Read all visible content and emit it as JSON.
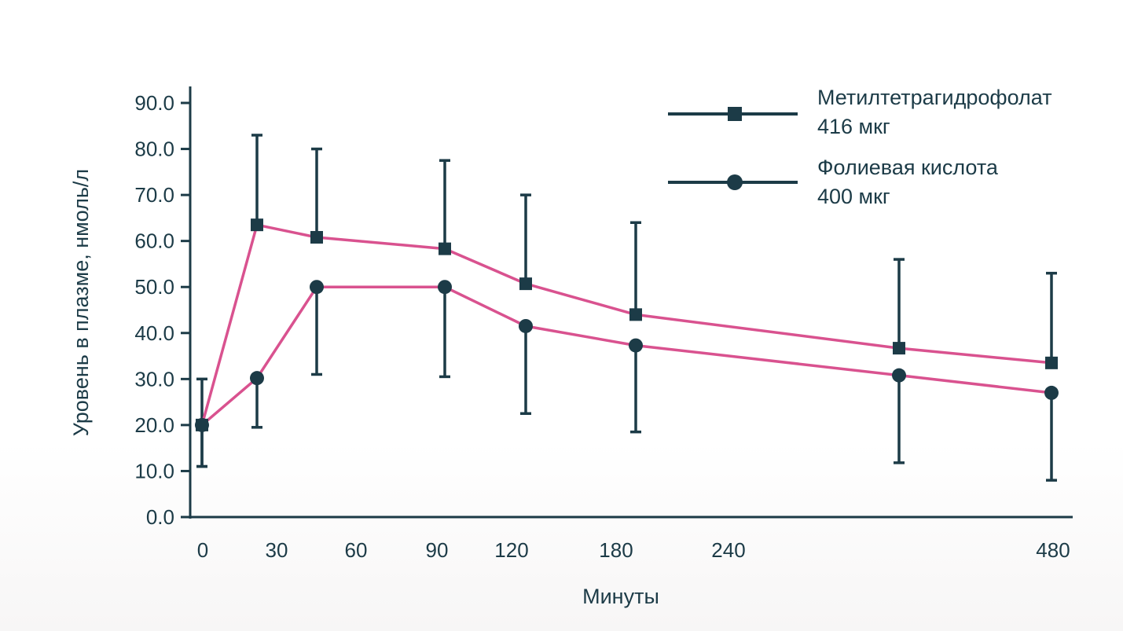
{
  "chart_data": {
    "type": "line",
    "title": "",
    "xlabel": "Минуты",
    "ylabel": "Уровень в плазме, нмоль/л",
    "ylim": [
      0,
      90
    ],
    "grid": false,
    "legend_position": "top-right",
    "colors": {
      "line": "#d9528f",
      "marker": "#1c3b47",
      "axis": "#1c3b47"
    },
    "y_ticks": [
      "0.0",
      "10.0",
      "20.0",
      "30.0",
      "40.0",
      "50.0",
      "60.0",
      "70.0",
      "80.0",
      "90.0"
    ],
    "x_tick_labels": [
      "0",
      "30",
      "60",
      "90",
      "120",
      "180",
      "240",
      "480"
    ],
    "series": [
      {
        "name": "Метилтетрагидрофолат 416 мкг",
        "legend_lines": [
          "Метилтетрагидрофолат",
          "416 мкг"
        ],
        "marker": "square",
        "points": [
          {
            "x": 0,
            "y": 20.0,
            "err_low": 11.0,
            "err_high": 30.0
          },
          {
            "x": 20,
            "y": 63.5,
            "err_low": 63.5,
            "err_high": 83.0
          },
          {
            "x": 45,
            "y": 60.8,
            "err_low": 60.8,
            "err_high": 80.0
          },
          {
            "x": 90,
            "y": 58.3,
            "err_low": 58.3,
            "err_high": 77.5
          },
          {
            "x": 130,
            "y": 50.7,
            "err_low": 50.7,
            "err_high": 70.0
          },
          {
            "x": 190,
            "y": 44.0,
            "err_low": 44.0,
            "err_high": 64.0
          },
          {
            "x": 420,
            "y": 36.7,
            "err_low": 36.7,
            "err_high": 56.0
          },
          {
            "x": 480,
            "y": 33.5,
            "err_low": 33.5,
            "err_high": 53.0
          }
        ]
      },
      {
        "name": "Фолиевая кислота 400 мкг",
        "legend_lines": [
          "Фолиевая кислота",
          "400 мкг"
        ],
        "marker": "circle",
        "points": [
          {
            "x": 0,
            "y": 20.0,
            "err_low": 11.0,
            "err_high": 20.0
          },
          {
            "x": 20,
            "y": 30.2,
            "err_low": 19.5,
            "err_high": 30.2
          },
          {
            "x": 45,
            "y": 50.0,
            "err_low": 31.0,
            "err_high": 50.0
          },
          {
            "x": 90,
            "y": 50.0,
            "err_low": 30.5,
            "err_high": 50.0
          },
          {
            "x": 130,
            "y": 41.5,
            "err_low": 22.5,
            "err_high": 41.5
          },
          {
            "x": 190,
            "y": 37.3,
            "err_low": 18.5,
            "err_high": 37.3
          },
          {
            "x": 420,
            "y": 30.8,
            "err_low": 11.8,
            "err_high": 30.8
          },
          {
            "x": 480,
            "y": 27.0,
            "err_low": 8.0,
            "err_high": 27.0
          }
        ]
      }
    ]
  }
}
